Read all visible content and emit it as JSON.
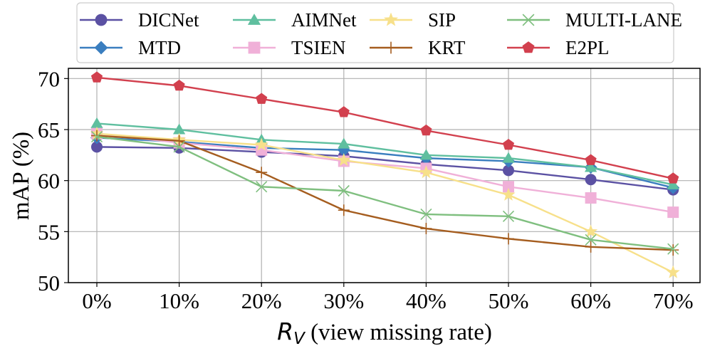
{
  "chart_data": {
    "type": "line",
    "title": "",
    "xlabel_var": "R",
    "xlabel_sub": "V",
    "xlabel_rest": " (view missing rate)",
    "ylabel": "mAP (%)",
    "categories": [
      "0%",
      "10%",
      "20%",
      "30%",
      "40%",
      "50%",
      "60%",
      "70%"
    ],
    "ylim": [
      50,
      71
    ],
    "yticks": [
      "50",
      "55",
      "60",
      "65",
      "70"
    ],
    "grid": true,
    "legend_position": "top-center",
    "series": [
      {
        "name": "DICNet",
        "color": "#5b51a3",
        "marker": "circle",
        "values": [
          63.3,
          63.2,
          62.8,
          62.4,
          61.6,
          61.0,
          60.1,
          59.1
        ]
      },
      {
        "name": "MTD",
        "color": "#3a7ebf",
        "marker": "diamond",
        "values": [
          64.2,
          63.8,
          63.2,
          63.0,
          62.2,
          61.9,
          61.3,
          59.3
        ]
      },
      {
        "name": "AIMNet",
        "color": "#5fbf9f",
        "marker": "triangle",
        "values": [
          65.6,
          65.0,
          64.0,
          63.6,
          62.5,
          62.2,
          61.3,
          59.6
        ]
      },
      {
        "name": "TSIEN",
        "color": "#f0b0d8",
        "marker": "square",
        "values": [
          64.6,
          63.7,
          63.0,
          61.9,
          61.2,
          59.4,
          58.3,
          56.9
        ]
      },
      {
        "name": "SIP",
        "color": "#f7e08a",
        "marker": "star",
        "values": [
          64.6,
          64.0,
          63.5,
          62.0,
          60.8,
          58.6,
          55.0,
          51.0
        ]
      },
      {
        "name": "KRT",
        "color": "#a55d1f",
        "marker": "plus",
        "values": [
          64.4,
          63.9,
          60.8,
          57.1,
          55.3,
          54.3,
          53.5,
          53.2
        ]
      },
      {
        "name": "MULTI-LANE",
        "color": "#7fbf7f",
        "marker": "x",
        "values": [
          64.3,
          63.3,
          59.4,
          59.0,
          56.7,
          56.5,
          54.2,
          53.3
        ]
      },
      {
        "name": "E2PL",
        "color": "#d2404e",
        "marker": "pentagon",
        "values": [
          70.1,
          69.3,
          68.0,
          66.7,
          64.9,
          63.5,
          62.0,
          60.2
        ]
      }
    ]
  }
}
